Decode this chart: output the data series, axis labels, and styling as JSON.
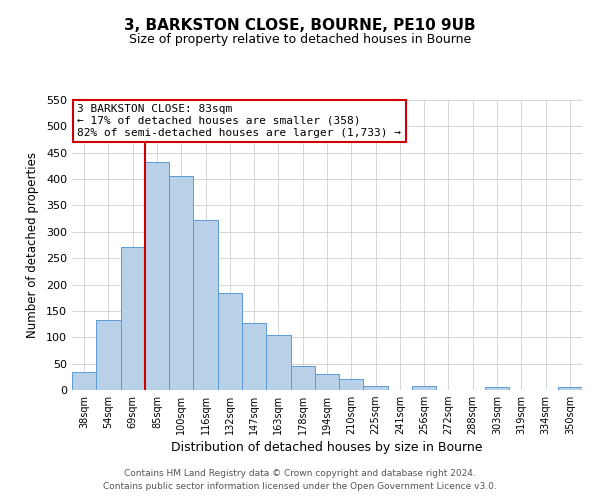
{
  "title": "3, BARKSTON CLOSE, BOURNE, PE10 9UB",
  "subtitle": "Size of property relative to detached houses in Bourne",
  "xlabel": "Distribution of detached houses by size in Bourne",
  "ylabel": "Number of detached properties",
  "bar_labels": [
    "38sqm",
    "54sqm",
    "69sqm",
    "85sqm",
    "100sqm",
    "116sqm",
    "132sqm",
    "147sqm",
    "163sqm",
    "178sqm",
    "194sqm",
    "210sqm",
    "225sqm",
    "241sqm",
    "256sqm",
    "272sqm",
    "288sqm",
    "303sqm",
    "319sqm",
    "334sqm",
    "350sqm"
  ],
  "bar_values": [
    35,
    133,
    271,
    432,
    405,
    323,
    184,
    128,
    104,
    46,
    30,
    20,
    8,
    0,
    8,
    0,
    0,
    5,
    0,
    0,
    5
  ],
  "bar_color": "#b8d0e8",
  "bar_edge_color": "#5b9bd5",
  "marker_line_index": 3,
  "ylim": [
    0,
    550
  ],
  "yticks": [
    0,
    50,
    100,
    150,
    200,
    250,
    300,
    350,
    400,
    450,
    500,
    550
  ],
  "annotation_title": "3 BARKSTON CLOSE: 83sqm",
  "annotation_line1": "← 17% of detached houses are smaller (358)",
  "annotation_line2": "82% of semi-detached houses are larger (1,733) →",
  "footer_line1": "Contains HM Land Registry data © Crown copyright and database right 2024.",
  "footer_line2": "Contains public sector information licensed under the Open Government Licence v3.0.",
  "marker_color": "#cc0000",
  "annotation_box_facecolor": "#ffffff",
  "annotation_box_edgecolor": "#cc0000",
  "background_color": "#ffffff",
  "grid_color": "#d0d0d0"
}
